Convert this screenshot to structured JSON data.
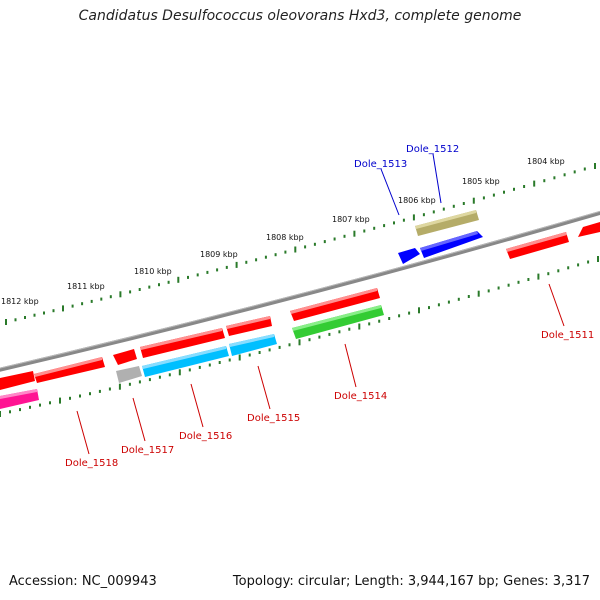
{
  "title": "Candidatus Desulfococcus oleovorans Hxd3, complete genome",
  "footer": {
    "accession": "Accession: NC_009943",
    "stats": "Topology: circular; Length: 3,944,167 bp; Genes: 3,317"
  },
  "ruler": [
    "1804 kbp",
    "1805 kbp",
    "1806 kbp",
    "1807 kbp",
    "1808 kbp",
    "1809 kbp",
    "1810 kbp",
    "1811 kbp",
    "1812 kbp"
  ],
  "colors": {
    "backbone": "#808080",
    "tick": "#2a7a2a",
    "upper_label": "#0000cc",
    "lower_label": "#cc0000",
    "red": "#ff0000",
    "blue": "#0000ff",
    "olive": "#b5ac68",
    "green": "#33cc33",
    "cyan": "#00bfff",
    "gray": "#b0b0b0",
    "magenta": "#ff1493"
  },
  "gene_labels": [
    {
      "text": "Dole_1512",
      "color": "blue"
    },
    {
      "text": "Dole_1513",
      "color": "blue"
    },
    {
      "text": "Dole_1511",
      "color": "red"
    },
    {
      "text": "Dole_1514",
      "color": "red"
    },
    {
      "text": "Dole_1515",
      "color": "red"
    },
    {
      "text": "Dole_1516",
      "color": "red"
    },
    {
      "text": "Dole_1517",
      "color": "red"
    },
    {
      "text": "Dole_1518",
      "color": "red"
    }
  ]
}
